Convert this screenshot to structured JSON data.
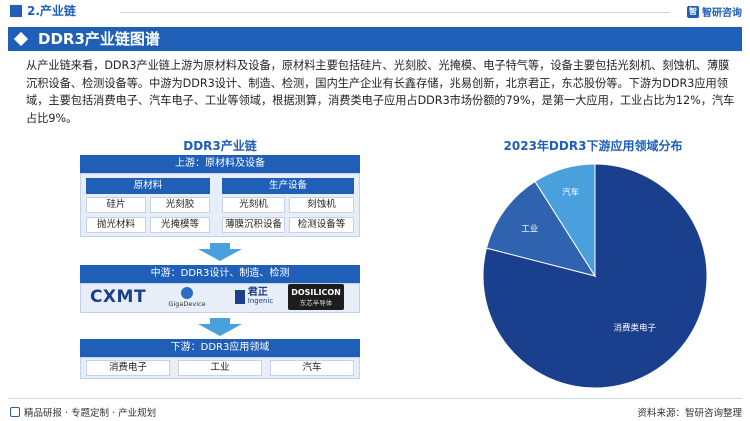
{
  "section": {
    "title": "2.产业链"
  },
  "brand": {
    "name": "智研咨询"
  },
  "header": {
    "title": "DDR3产业链图谱"
  },
  "intro": "从产业链来看，DDR3产业链上游为原材料及设备，原材料主要包括硅片、光刻胶、光掩模、电子特气等，设备主要包括光刻机、刻蚀机、薄膜沉积设备、检测设备等。中游为DDR3设计、制造、检测，国内生产企业有长鑫存储，兆易创新，北京君正，东芯股份等。下游为DDR3应用领域，主要包括消费电子、汽车电子、工业等领域，根据测算，消费类电子应用占DDR3市场份额的79%，是第一大应用，工业占比为12%，汽车占比9%。",
  "chain": {
    "title": "DDR3产业链",
    "upstream": {
      "head": "上游：原材料及设备",
      "materials": {
        "head": "原材料",
        "items": [
          "硅片",
          "光刻胶",
          "抛光材料",
          "光掩模等"
        ]
      },
      "equipment": {
        "head": "生产设备",
        "items": [
          "光刻机",
          "刻蚀机",
          "薄膜沉积设备",
          "检测设备等"
        ]
      }
    },
    "midstream": {
      "head": "中游：DDR3设计、制造、检测",
      "logos": {
        "cxmt": "CXMT",
        "gigadevice": "GigaDevice",
        "ingenic_cn": "君正",
        "ingenic_en": "Ingenic",
        "dosilicon_en": "DOSILICON",
        "dosilicon_cn": "东芯半导体"
      }
    },
    "downstream": {
      "head": "下游：DDR3应用领域",
      "items": [
        "消费电子",
        "工业",
        "汽车"
      ]
    }
  },
  "chart_data": {
    "type": "pie",
    "title": "2023年DDR3下游应用领域分布",
    "categories": [
      "消费类电子",
      "工业",
      "汽车"
    ],
    "values": [
      79,
      12,
      9
    ],
    "colors": [
      "#1a3f8c",
      "#2f63b0",
      "#4aa0dc"
    ]
  },
  "footer": {
    "left": "精品研报 · 专题定制 · 产业规划",
    "right": "资料来源：智研咨询整理"
  }
}
